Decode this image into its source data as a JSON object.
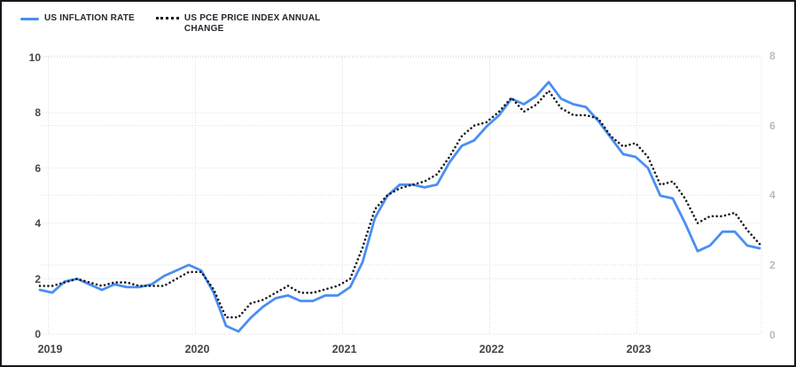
{
  "legend": {
    "series1": {
      "label": "US INFLATION RATE",
      "color": "#4a8ef2",
      "line_style": "solid"
    },
    "series2": {
      "label": "US PCE PRICE INDEX ANNUAL CHANGE",
      "color": "#17191d",
      "line_style": "dotted"
    }
  },
  "colors": {
    "background": "#ffffff",
    "border": "#15181d",
    "grid": "#dcdee4",
    "series1": "#4a8ef2",
    "series2": "#17191d",
    "left_label": "#45464b",
    "right_label": "#b8babf"
  },
  "chart_data": {
    "type": "line",
    "title": "",
    "x_start": "2019-01",
    "x_end": "2023-11",
    "x_interval": "monthly",
    "x_tick_labels": [
      "2019",
      "2020",
      "2021",
      "2022",
      "2023"
    ],
    "left_axis": {
      "ticks": [
        0,
        2,
        4,
        6,
        8,
        10
      ],
      "range": [
        0,
        10
      ]
    },
    "right_axis": {
      "ticks": [
        0,
        2,
        4,
        6,
        8
      ],
      "range": [
        0,
        8
      ]
    },
    "grid": true,
    "legend_position": "top-left",
    "series": [
      {
        "name": "US INFLATION RATE",
        "axis": "left",
        "style": "solid",
        "color": "#4a8ef2",
        "values": [
          1.6,
          1.5,
          1.9,
          2.0,
          1.8,
          1.6,
          1.8,
          1.7,
          1.7,
          1.8,
          2.1,
          2.3,
          2.5,
          2.3,
          1.5,
          0.3,
          0.1,
          0.6,
          1.0,
          1.3,
          1.4,
          1.2,
          1.2,
          1.4,
          1.4,
          1.7,
          2.6,
          4.2,
          5.0,
          5.4,
          5.4,
          5.3,
          5.4,
          6.2,
          6.8,
          7.0,
          7.5,
          7.9,
          8.5,
          8.3,
          8.6,
          9.1,
          8.5,
          8.3,
          8.2,
          7.7,
          7.1,
          6.5,
          6.4,
          6.0,
          5.0,
          4.9,
          4.0,
          3.0,
          3.2,
          3.7,
          3.7,
          3.2,
          3.1
        ]
      },
      {
        "name": "US PCE PRICE INDEX ANNUAL CHANGE",
        "axis": "right",
        "style": "dotted",
        "color": "#17191d",
        "values": [
          1.4,
          1.4,
          1.5,
          1.6,
          1.5,
          1.4,
          1.5,
          1.5,
          1.4,
          1.4,
          1.4,
          1.6,
          1.8,
          1.8,
          1.3,
          0.5,
          0.5,
          0.9,
          1.0,
          1.2,
          1.4,
          1.2,
          1.2,
          1.3,
          1.4,
          1.6,
          2.5,
          3.6,
          4.0,
          4.2,
          4.3,
          4.4,
          4.6,
          5.1,
          5.7,
          6.0,
          6.1,
          6.4,
          6.8,
          6.4,
          6.6,
          7.0,
          6.5,
          6.3,
          6.3,
          6.2,
          5.7,
          5.4,
          5.5,
          5.1,
          4.3,
          4.4,
          3.9,
          3.2,
          3.4,
          3.4,
          3.5,
          3.0,
          2.6
        ]
      }
    ]
  }
}
